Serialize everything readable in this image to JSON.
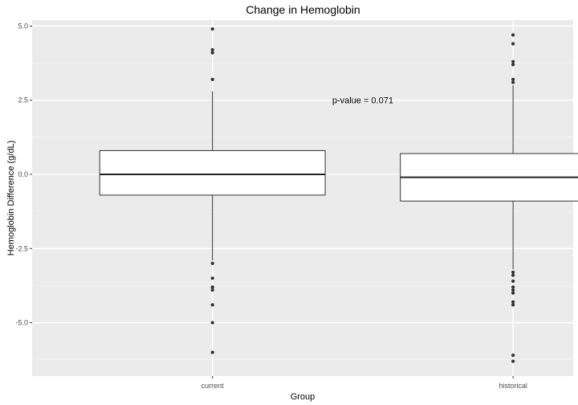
{
  "chart_data": {
    "type": "box",
    "title": "Change in Hemoglobin",
    "xlabel": "Group",
    "ylabel": "Hemoglobin Difference (g/dL)",
    "ylim": [
      -6.8,
      5.2
    ],
    "y_ticks": [
      -5.0,
      -2.5,
      0.0,
      2.5,
      5.0
    ],
    "y_tick_labels": [
      "-5.0",
      "-2.5",
      "0.0",
      "2.5",
      "5.0"
    ],
    "grid": true,
    "categories": [
      "current",
      "historical"
    ],
    "boxes": [
      {
        "group": "current",
        "q1": -0.7,
        "median": 0.0,
        "q3": 0.8,
        "whisker_low": -2.9,
        "whisker_high": 2.8,
        "outliers": [
          4.9,
          4.2,
          4.1,
          3.2,
          -3.0,
          -3.5,
          -3.8,
          -3.9,
          -4.4,
          -5.0,
          -6.0
        ]
      },
      {
        "group": "historical",
        "q1": -0.9,
        "median": -0.1,
        "q3": 0.7,
        "whisker_low": -3.2,
        "whisker_high": 3.0,
        "outliers": [
          4.7,
          4.4,
          3.8,
          3.7,
          3.2,
          3.1,
          -3.3,
          -3.4,
          -3.6,
          -3.8,
          -3.9,
          -4.0,
          -4.3,
          -4.4,
          -6.1,
          -6.3
        ]
      }
    ],
    "annotations": [
      {
        "text": "p-value = 0.071",
        "x_position": 1.5,
        "y": 2.5
      }
    ]
  }
}
